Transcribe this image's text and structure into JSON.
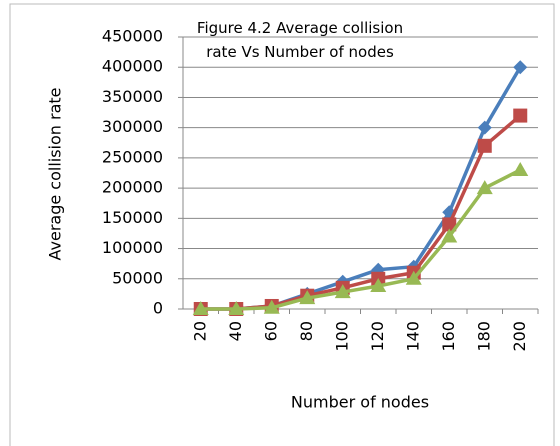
{
  "chart_data": {
    "type": "line",
    "title": "Figure 4.2 Average collision rate Vs Number of nodes",
    "x_label": "Number of nodes",
    "y_label": "Average collision rate",
    "categories": [
      "20",
      "40",
      "60",
      "80",
      "100",
      "120",
      "140",
      "160",
      "180",
      "200"
    ],
    "series": [
      {
        "color": "#4a7ebb",
        "marker": "diamond",
        "values": [
          0,
          0,
          5000,
          25000,
          45000,
          65000,
          70000,
          160000,
          300000,
          400000
        ]
      },
      {
        "color": "#be4b48",
        "marker": "square",
        "values": [
          0,
          0,
          5000,
          22000,
          35000,
          50000,
          60000,
          140000,
          270000,
          320000
        ]
      },
      {
        "color": "#98b954",
        "marker": "triangle",
        "values": [
          0,
          0,
          2000,
          18000,
          28000,
          38000,
          50000,
          120000,
          200000,
          230000
        ]
      }
    ],
    "ylim": [
      0,
      450000
    ],
    "yticks": [
      0,
      50000,
      100000,
      150000,
      200000,
      250000,
      300000,
      350000,
      400000,
      450000
    ],
    "grid": true
  }
}
